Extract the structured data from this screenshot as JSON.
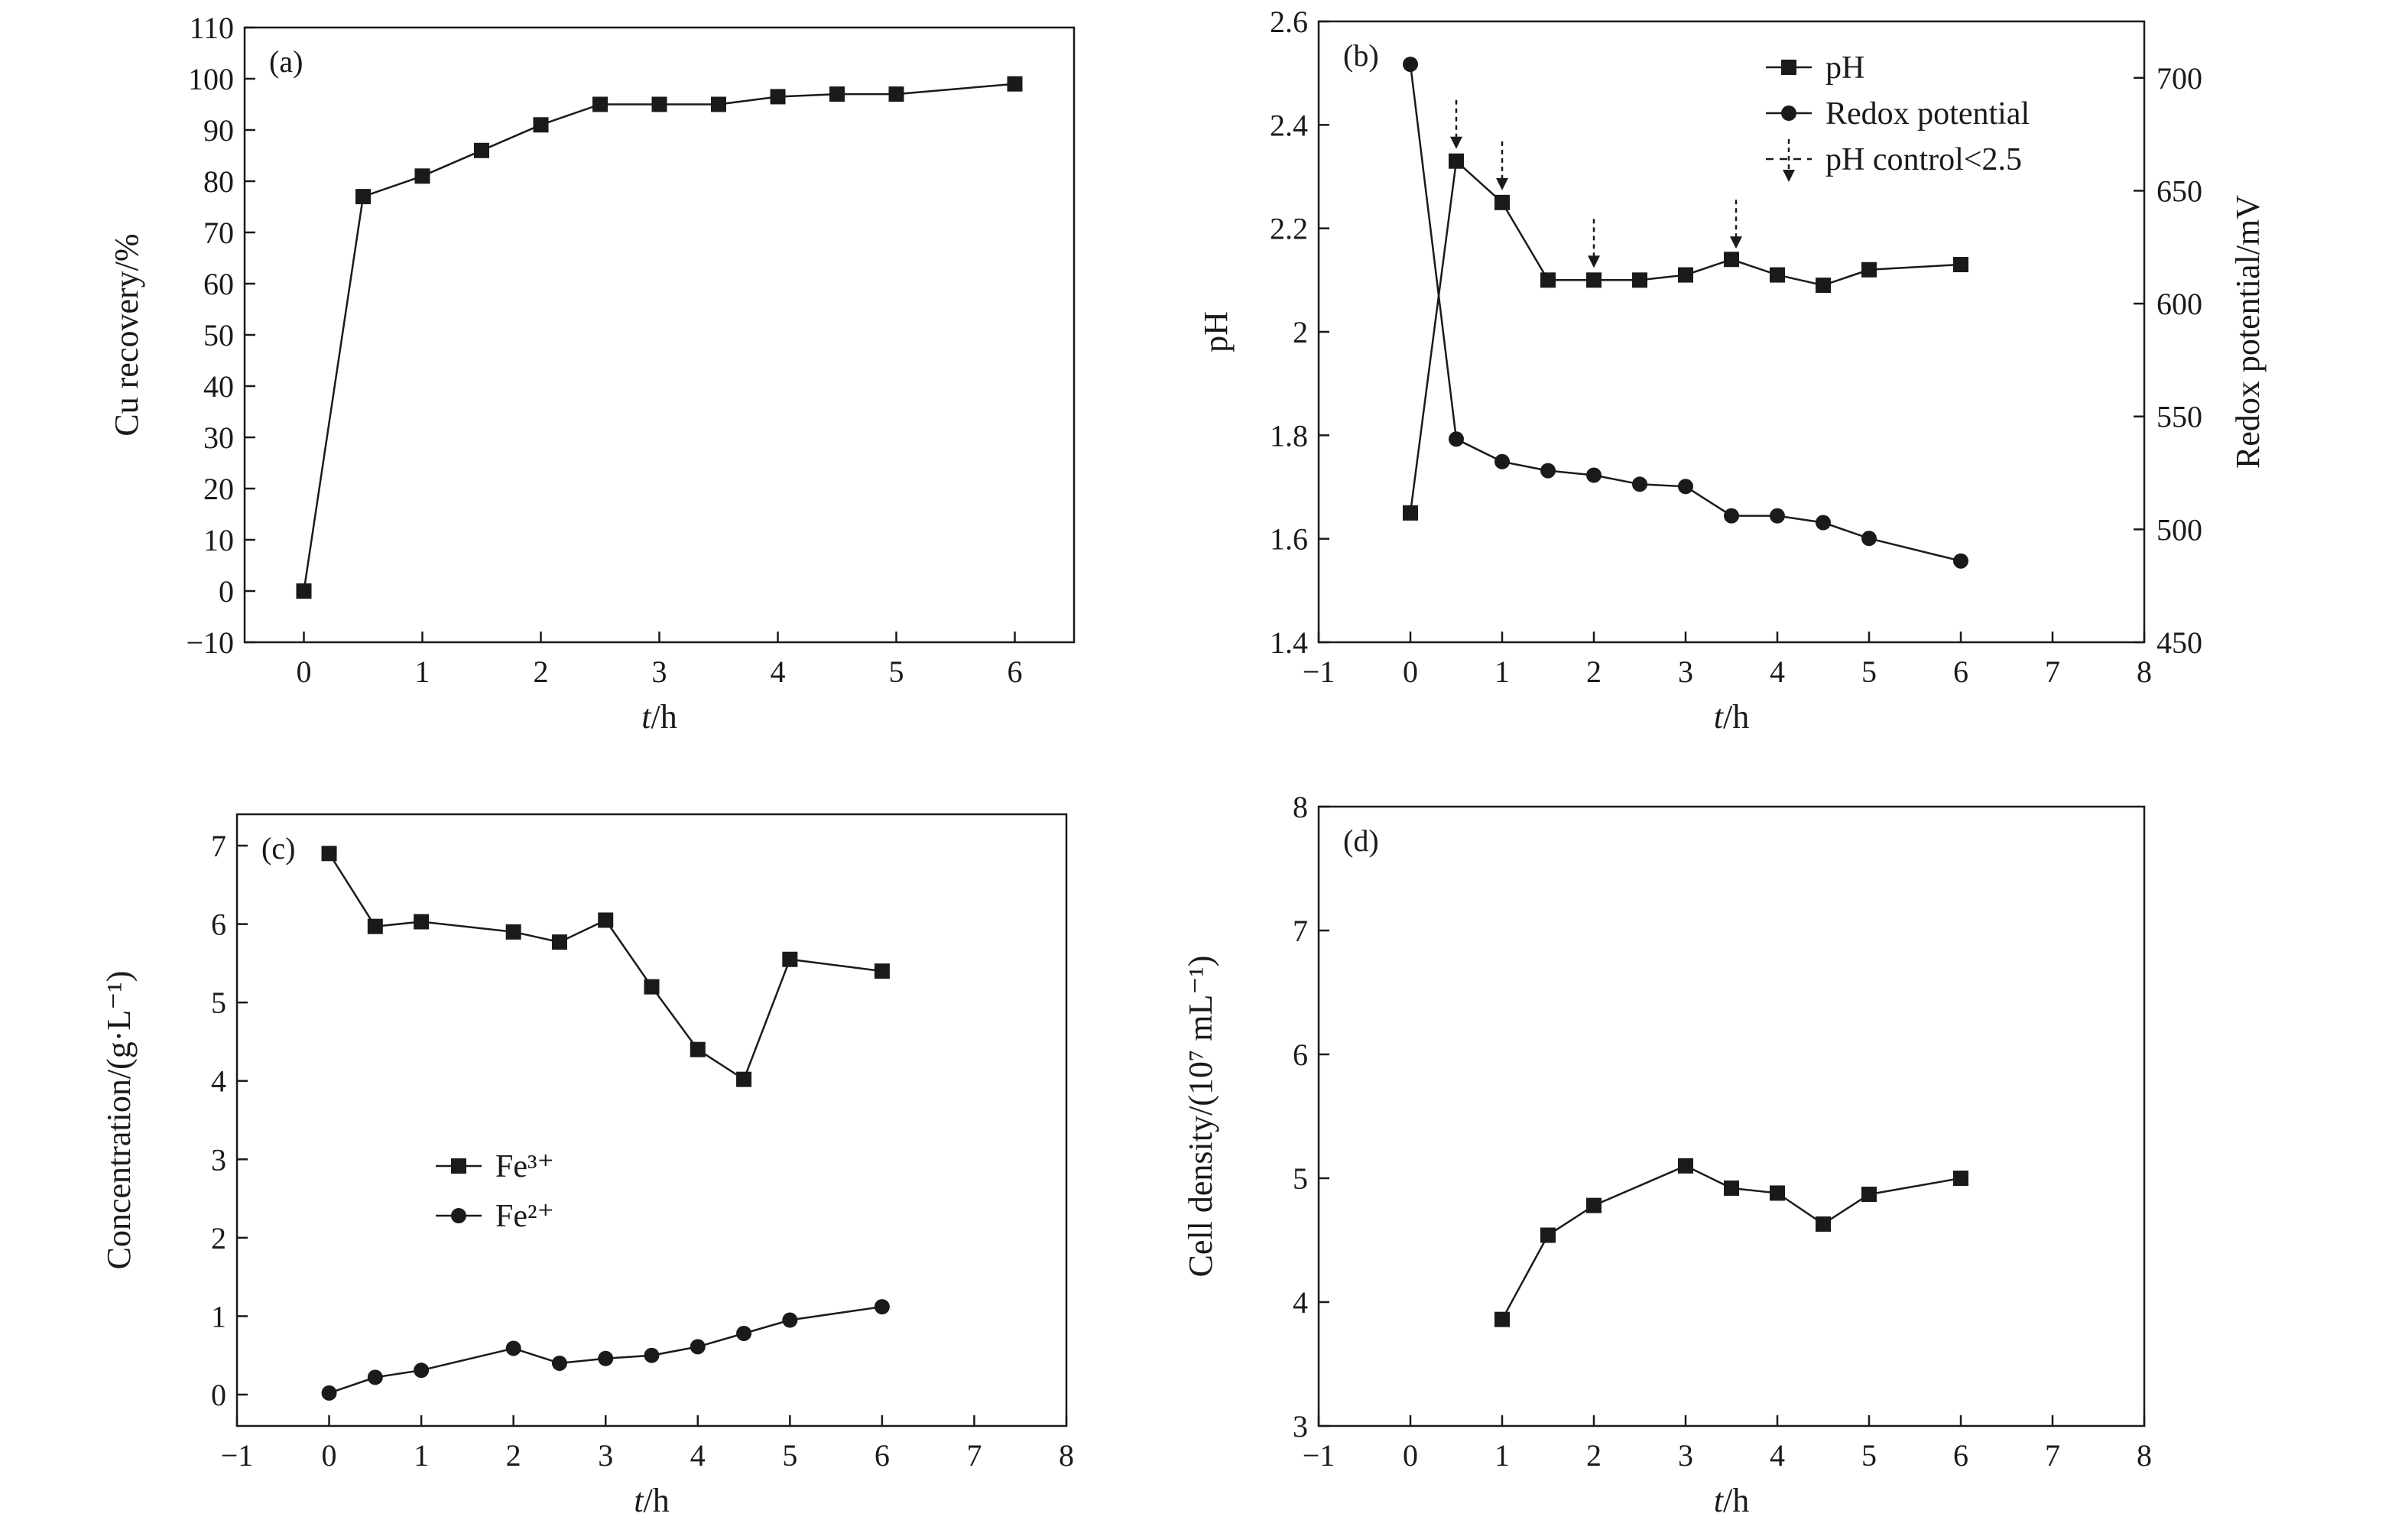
{
  "chart_data": [
    {
      "panel": "(a)",
      "type": "line",
      "xlabel_var": "t",
      "xlabel_unit": "/h",
      "ylabel": "Cu recovery/%",
      "xlim": [
        -0.5,
        6.5
      ],
      "ylim": [
        -10,
        110
      ],
      "xticks": [
        0,
        1,
        2,
        3,
        4,
        5,
        6
      ],
      "yticks": [
        -10,
        0,
        10,
        20,
        30,
        40,
        50,
        60,
        70,
        80,
        90,
        100,
        110
      ],
      "series": [
        {
          "name": "Cu recovery",
          "marker": "square",
          "x": [
            0,
            0.5,
            1,
            1.5,
            2,
            2.5,
            3,
            3.5,
            4,
            4.5,
            5,
            6
          ],
          "y": [
            0,
            77,
            81,
            86,
            91,
            95,
            95,
            95,
            96.5,
            97,
            97,
            99
          ]
        }
      ]
    },
    {
      "panel": "(b)",
      "type": "line",
      "xlabel_var": "t",
      "xlabel_unit": "/h",
      "ylabel": "pH",
      "y2label": "Redox potential/mV",
      "xlim": [
        -1,
        8
      ],
      "ylim": [
        1.4,
        2.6
      ],
      "y2lim": [
        450,
        725
      ],
      "xticks": [
        -1,
        0,
        1,
        2,
        3,
        4,
        5,
        6,
        7,
        8
      ],
      "yticks": [
        1.4,
        1.6,
        1.8,
        2.0,
        2.2,
        2.4,
        2.6
      ],
      "y2ticks": [
        450,
        500,
        550,
        600,
        650,
        700
      ],
      "series": [
        {
          "name": "pH",
          "marker": "square",
          "axis": "left",
          "x": [
            0,
            0.5,
            1,
            1.5,
            2,
            2.5,
            3,
            3.5,
            4,
            4.5,
            5,
            6
          ],
          "y": [
            1.65,
            2.33,
            2.25,
            2.1,
            2.1,
            2.1,
            2.11,
            2.14,
            2.11,
            2.09,
            2.12,
            2.13
          ]
        },
        {
          "name": "Redox potential",
          "marker": "circle",
          "axis": "right",
          "x": [
            0,
            0.5,
            1,
            1.5,
            2,
            2.5,
            3,
            3.5,
            4,
            4.5,
            5,
            6
          ],
          "y": [
            706,
            540,
            530,
            526,
            524,
            520,
            519,
            506,
            506,
            503,
            496,
            486
          ]
        }
      ],
      "annotations": {
        "name": "pH control<2.5",
        "arrow_x": [
          0.5,
          1,
          2,
          3.55
        ]
      }
    },
    {
      "panel": "(c)",
      "type": "line",
      "xlabel_var": "t",
      "xlabel_unit": "/h",
      "ylabel": "Concentration/(g·L⁻¹)",
      "xlim": [
        -1,
        8
      ],
      "ylim": [
        -0.4,
        7.4
      ],
      "xticks": [
        -1,
        0,
        1,
        2,
        3,
        4,
        5,
        6,
        7,
        8
      ],
      "yticks": [
        0,
        1,
        2,
        3,
        4,
        5,
        6,
        7
      ],
      "series": [
        {
          "name": "Fe³⁺",
          "marker": "square",
          "x": [
            0,
            0.5,
            1,
            2,
            2.5,
            3,
            3.5,
            4,
            4.5,
            5,
            6
          ],
          "y": [
            6.9,
            5.97,
            6.03,
            5.9,
            5.77,
            6.05,
            5.2,
            4.4,
            4.02,
            5.55,
            5.4
          ]
        },
        {
          "name": "Fe²⁺",
          "marker": "circle",
          "x": [
            0,
            0.5,
            1,
            2,
            2.5,
            3,
            3.5,
            4,
            4.5,
            5,
            6
          ],
          "y": [
            0.02,
            0.22,
            0.31,
            0.59,
            0.4,
            0.46,
            0.5,
            0.61,
            0.78,
            0.95,
            1.12
          ]
        }
      ]
    },
    {
      "panel": "(d)",
      "type": "line",
      "xlabel_var": "t",
      "xlabel_unit": "/h",
      "ylabel": "Cell density/(10⁷ mL⁻¹)",
      "xlim": [
        -1,
        8
      ],
      "ylim": [
        3,
        8
      ],
      "xticks": [
        -1,
        0,
        1,
        2,
        3,
        4,
        5,
        6,
        7,
        8
      ],
      "yticks": [
        3,
        4,
        5,
        6,
        7,
        8
      ],
      "series": [
        {
          "name": "Cell density",
          "marker": "square",
          "x": [
            1,
            1.5,
            2,
            3,
            3.5,
            4,
            4.5,
            5,
            6
          ],
          "y": [
            3.86,
            4.54,
            4.78,
            5.1,
            4.92,
            4.88,
            4.63,
            4.87,
            5.0
          ]
        }
      ]
    }
  ]
}
